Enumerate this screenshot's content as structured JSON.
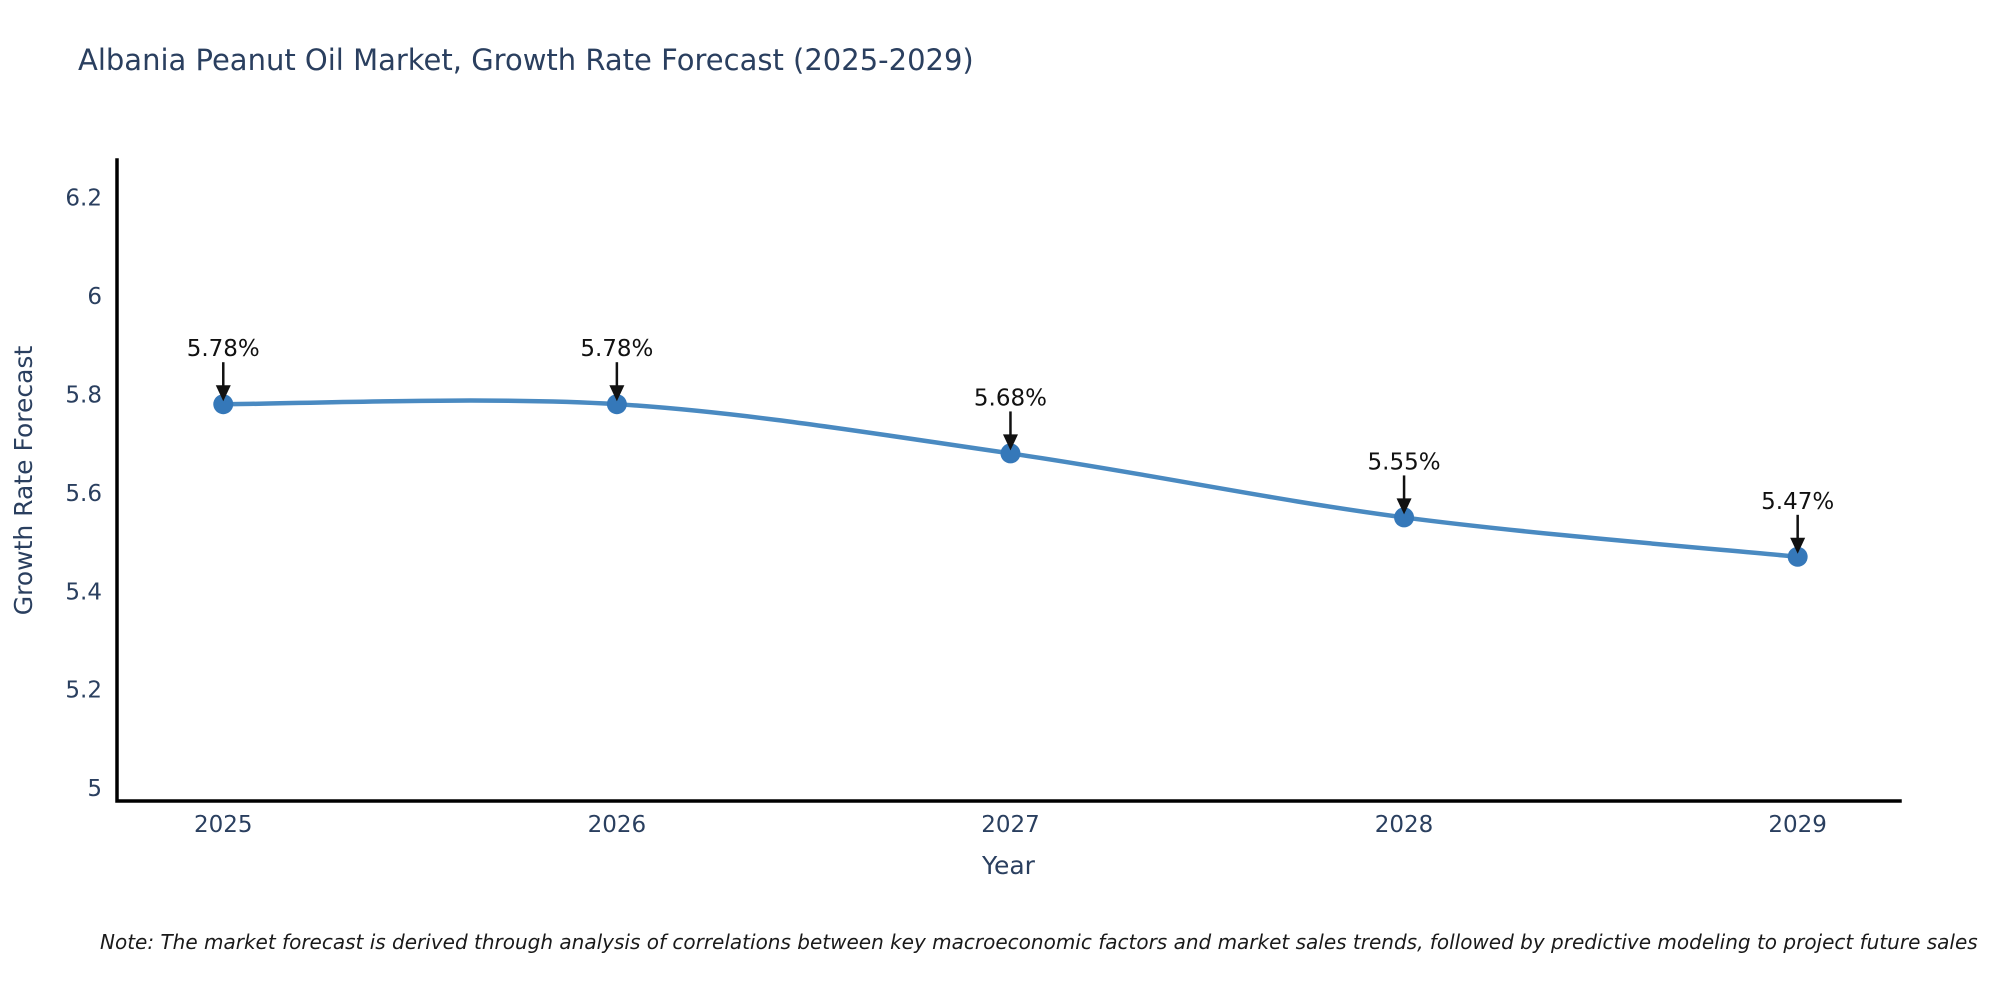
{
  "title": "Albania Peanut Oil Market, Growth Rate Forecast (2025-2029)",
  "note": "Note: The market forecast is derived through analysis of correlations between key macroeconomic factors and market sales trends, followed by predictive modeling to project future sales",
  "chart_data": {
    "type": "line",
    "title": "Albania Peanut Oil Market, Growth Rate Forecast (2025-2029)",
    "xlabel": "Year",
    "ylabel": "Growth Rate Forecast",
    "x": [
      2025,
      2026,
      2027,
      2028,
      2029
    ],
    "series": [
      {
        "name": "Growth Rate Forecast",
        "values": [
          5.78,
          5.78,
          5.68,
          5.55,
          5.47
        ]
      }
    ],
    "point_labels": [
      "5.78%",
      "5.78%",
      "5.68%",
      "5.55%",
      "5.47%"
    ],
    "yticks": [
      5,
      5.2,
      5.4,
      5.6,
      5.8,
      6,
      6.2
    ],
    "xticks": [
      2025,
      2026,
      2027,
      2028,
      2029
    ],
    "ylim": [
      4.974,
      6.276
    ],
    "xlim": [
      2024.73,
      2029.26
    ],
    "grid": false,
    "legend_position": "none",
    "line_shape": "spline",
    "colors": {
      "line": "#4a8ac1",
      "marker": "#3578b9",
      "axis": "#000000",
      "tick_text": "#2a3f5f",
      "axis_title_text": "#2a3f5f",
      "title_text": "#2a3f5f",
      "annotation": "#111111",
      "background": "#ffffff"
    }
  }
}
